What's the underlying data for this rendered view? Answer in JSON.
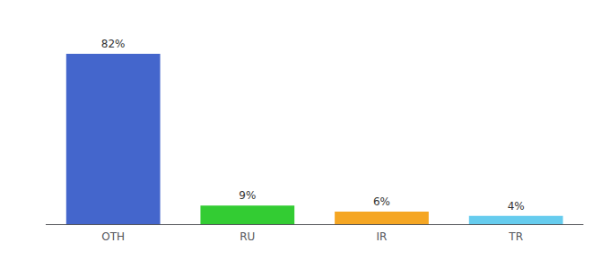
{
  "chart_data": {
    "type": "bar",
    "categories": [
      "OTH",
      "RU",
      "IR",
      "TR"
    ],
    "values": [
      82,
      9,
      6,
      4
    ],
    "value_labels": [
      "82%",
      "9%",
      "6%",
      "4%"
    ],
    "colors": [
      "#4466cc",
      "#33cc33",
      "#f5a623",
      "#66ccee"
    ],
    "ylim": [
      0,
      95
    ],
    "data_labels": true,
    "tick_labels": "x",
    "grid": false
  }
}
